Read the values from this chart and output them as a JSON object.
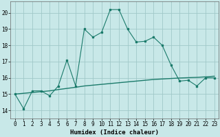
{
  "x": [
    0,
    1,
    2,
    3,
    4,
    5,
    6,
    7,
    8,
    9,
    10,
    11,
    12,
    13,
    14,
    15,
    16,
    17,
    18,
    19,
    20,
    21,
    22,
    23
  ],
  "y_main": [
    15.0,
    14.1,
    15.2,
    15.2,
    14.9,
    15.5,
    17.1,
    15.5,
    19.0,
    18.5,
    18.8,
    20.2,
    20.2,
    19.0,
    18.2,
    18.25,
    18.5,
    18.0,
    16.8,
    15.8,
    15.85,
    15.5,
    16.0,
    16.0
  ],
  "y_trend": [
    15.0,
    15.05,
    15.1,
    15.15,
    15.2,
    15.28,
    15.35,
    15.42,
    15.5,
    15.55,
    15.6,
    15.65,
    15.7,
    15.75,
    15.8,
    15.85,
    15.9,
    15.93,
    15.96,
    15.99,
    16.01,
    16.03,
    16.06,
    16.1
  ],
  "line_color": "#1a7a6a",
  "bg_color": "#c8e8e8",
  "grid_color": "#a0c8c8",
  "xlabel": "Humidex (Indice chaleur)",
  "ylim": [
    13.5,
    20.7
  ],
  "xlim": [
    -0.5,
    23.5
  ],
  "yticks": [
    14,
    15,
    16,
    17,
    18,
    19,
    20
  ],
  "xticks": [
    0,
    1,
    2,
    3,
    4,
    5,
    6,
    7,
    8,
    9,
    10,
    11,
    12,
    13,
    14,
    15,
    16,
    17,
    18,
    19,
    20,
    21,
    22,
    23
  ],
  "tick_fontsize": 5.5,
  "label_fontsize": 6.5
}
